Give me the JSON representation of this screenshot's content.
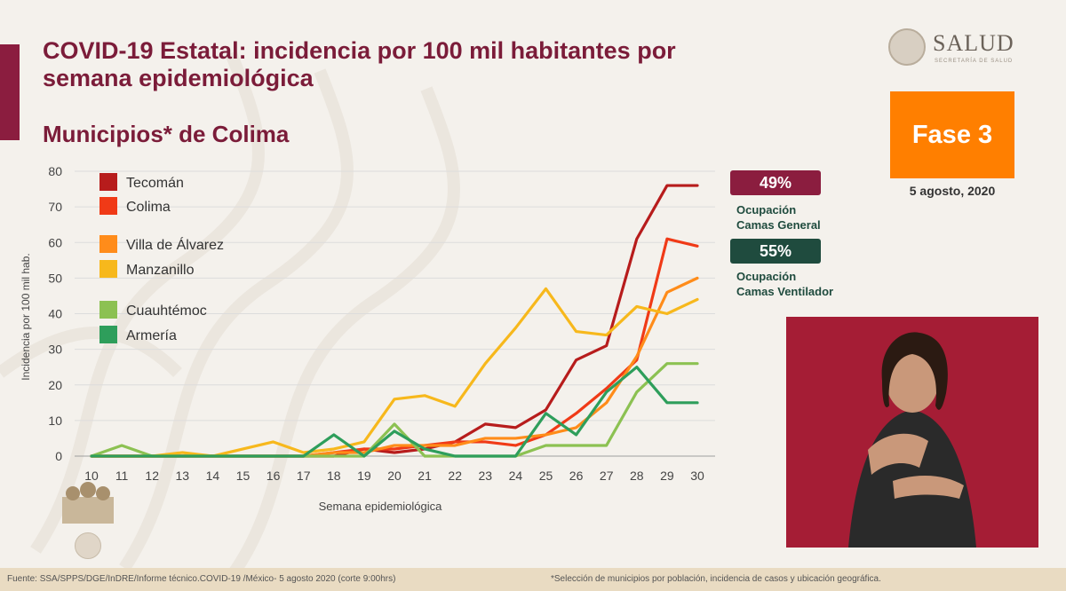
{
  "header": {
    "title_line1": "COVID-19 Estatal: incidencia por 100 mil habitantes por",
    "title_line2": "semana epidemiológica",
    "subtitle": "Municipios* de Colima"
  },
  "logo": {
    "text": "SALUD",
    "subtext": "SECRETARÍA DE SALUD"
  },
  "phase": {
    "label": "Fase 3",
    "date": "5 agosto, 2020",
    "color": "#ff7f00"
  },
  "occupancy": {
    "general": {
      "value": "49%",
      "label_line1": "Ocupación",
      "label_line2": "Camas General",
      "color": "#8b1d3f"
    },
    "ventilator": {
      "value": "55%",
      "label_line1": "Ocupación",
      "label_line2": "Camas Ventilador",
      "color": "#1f4b3e"
    }
  },
  "footer": {
    "source": "Fuente: SSA/SPPS/DGE/InDRE/Informe técnico.COVID-19 /México- 5 agosto 2020 (corte 9:00hrs)",
    "note": "*Selección de municipios por población, incidencia de casos y ubicación geográfica."
  },
  "chart_data": {
    "type": "line",
    "title": "",
    "xlabel": "Semana epidemiológica",
    "ylabel": "Incidencia por 100 mil hab.",
    "x": [
      10,
      11,
      12,
      13,
      14,
      15,
      16,
      17,
      18,
      19,
      20,
      21,
      22,
      23,
      24,
      25,
      26,
      27,
      28,
      29,
      30
    ],
    "ylim": [
      0,
      80
    ],
    "yticks": [
      0,
      10,
      20,
      30,
      40,
      50,
      60,
      70,
      80
    ],
    "grid": true,
    "legend_position": "top-left",
    "series": [
      {
        "name": "Tecomán",
        "color": "#b71c1c",
        "values": [
          0,
          0,
          0,
          0,
          0,
          0,
          0,
          0,
          0,
          2,
          1,
          2,
          4,
          9,
          8,
          13,
          27,
          31,
          61,
          76,
          76
        ]
      },
      {
        "name": "Colima",
        "color": "#f03a17",
        "values": [
          0,
          0,
          0,
          0,
          0,
          0,
          0,
          0,
          1,
          2,
          2,
          3,
          4,
          4,
          3,
          6,
          12,
          19,
          27,
          61,
          59
        ]
      },
      {
        "name": "Villa de Álvarez",
        "color": "#ff8c1a",
        "values": [
          0,
          0,
          0,
          0,
          0,
          0,
          0,
          0,
          1,
          1,
          3,
          3,
          3,
          5,
          5,
          6,
          8,
          15,
          28,
          46,
          50
        ]
      },
      {
        "name": "Manzanillo",
        "color": "#f7b81c",
        "values": [
          0,
          0,
          0,
          1,
          0,
          2,
          4,
          1,
          2,
          4,
          16,
          17,
          14,
          26,
          36,
          47,
          35,
          34,
          42,
          40,
          44
        ]
      },
      {
        "name": "Cuauhtémoc",
        "color": "#8cc152",
        "values": [
          0,
          3,
          0,
          0,
          0,
          0,
          0,
          0,
          0,
          0,
          9,
          0,
          0,
          0,
          0,
          3,
          3,
          3,
          18,
          26,
          26
        ]
      },
      {
        "name": "Armería",
        "color": "#2e9e5b",
        "values": [
          0,
          0,
          0,
          0,
          0,
          0,
          0,
          0,
          6,
          0,
          7,
          2,
          0,
          0,
          0,
          12,
          6,
          18,
          25,
          15,
          15
        ]
      }
    ]
  }
}
